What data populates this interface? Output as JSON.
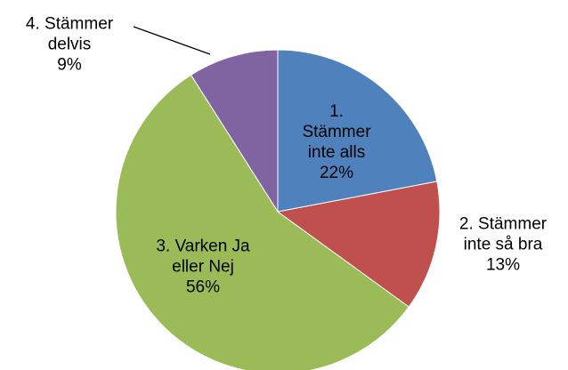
{
  "chart_data": {
    "type": "pie",
    "categories": [
      "1. Stämmer inte alls",
      "2. Stämmer inte så bra",
      "3. Varken Ja eller Nej",
      "4. Stämmer delvis"
    ],
    "values": [
      22,
      13,
      56,
      9
    ],
    "value_labels": [
      "22%",
      "13%",
      "56%",
      "9%"
    ],
    "colors": [
      "#4f81bd",
      "#c0504d",
      "#9bbb59",
      "#8064a2"
    ]
  }
}
